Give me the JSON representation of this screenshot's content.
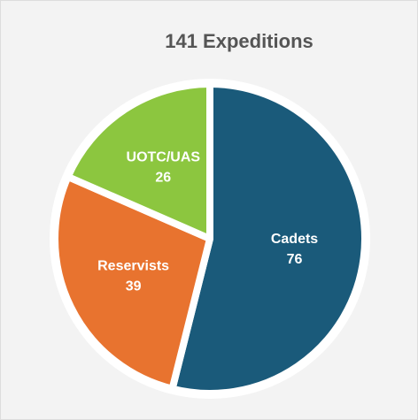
{
  "chart_data": {
    "type": "pie",
    "title": "141 Expeditions",
    "categories": [
      "Cadets",
      "Reservists",
      "UOTC/UAS"
    ],
    "values": [
      76,
      39,
      26
    ],
    "colors": [
      "#1a5a7a",
      "#e8732f",
      "#8cc63f"
    ]
  }
}
